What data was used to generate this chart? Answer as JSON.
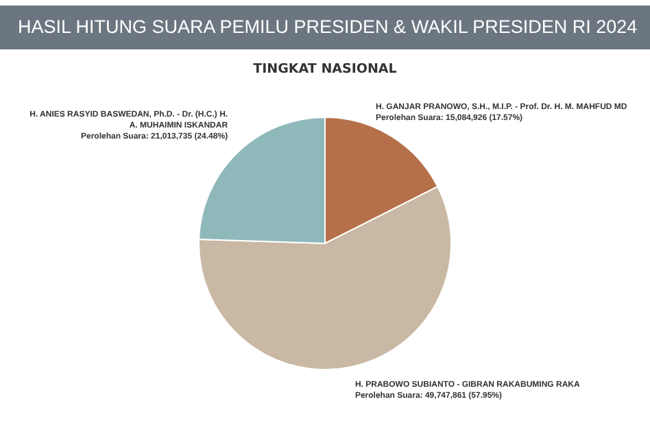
{
  "chart_data": {
    "type": "pie",
    "title": "HASIL HITUNG SUARA PEMILU PRESIDEN & WAKIL PRESIDEN RI 2024",
    "subtitle": "TINGKAT NASIONAL",
    "categories": [
      "H. GANJAR PRANOWO, S.H., M.I.P. - Prof. Dr. H. M. MAHFUD MD",
      "H. PRABOWO SUBIANTO - GIBRAN RAKABUMING RAKA",
      "H. ANIES RASYID BASWEDAN, Ph.D. - Dr. (H.C.) H. A. MUHAIMIN ISKANDAR"
    ],
    "values": [
      15084926,
      49747861,
      21013735
    ],
    "colors": [
      "#b5704a",
      "#c9b8a3",
      "#8fb8bb"
    ],
    "value_labels": [
      "Perolehan Suara: 15,084,926 (17.57%)",
      "Perolehan Suara: 49,747,861 (57.95%)",
      "Perolehan Suara: 21,013,735 (24.48%)"
    ]
  }
}
